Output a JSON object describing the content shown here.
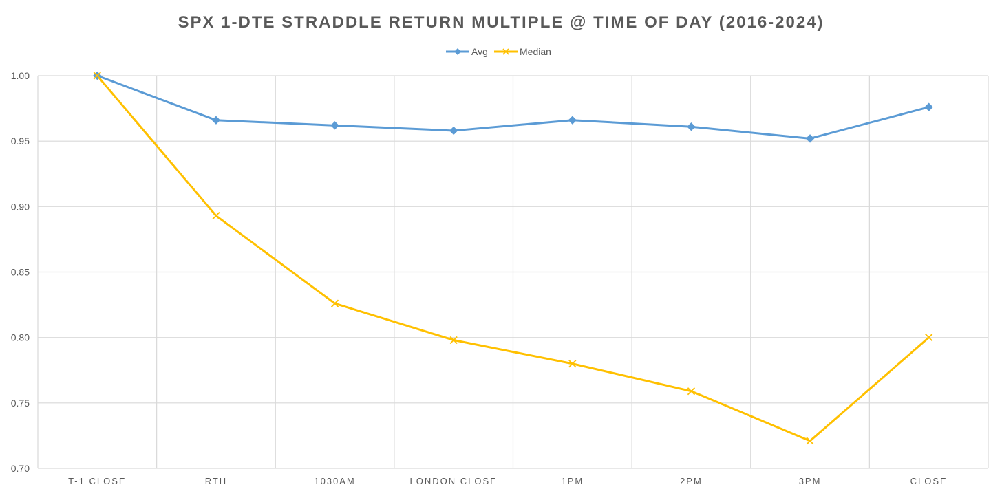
{
  "chart_data": {
    "type": "line",
    "title": "SPX 1-DTE STRADDLE RETURN MULTIPLE @ TIME OF DAY (2016-2024)",
    "xlabel": "",
    "ylabel": "",
    "categories": [
      "T-1 CLOSE",
      "RTH",
      "1030AM",
      "LONDON CLOSE",
      "1PM",
      "2PM",
      "3PM",
      "CLOSE"
    ],
    "ylim": [
      0.7,
      1.0
    ],
    "yticks": [
      "0.70",
      "0.75",
      "0.80",
      "0.85",
      "0.90",
      "0.95",
      "1.00"
    ],
    "yticks_values": [
      0.7,
      0.75,
      0.8,
      0.85,
      0.9,
      0.95,
      1.0
    ],
    "grid": true,
    "legend_position": "top-center",
    "series": [
      {
        "name": "Avg",
        "color": "#5B9BD5",
        "marker": "diamond",
        "values": [
          1.0,
          0.966,
          0.962,
          0.958,
          0.966,
          0.961,
          0.952,
          0.976
        ]
      },
      {
        "name": "Median",
        "color": "#FFC000",
        "marker": "x",
        "values": [
          1.0,
          0.893,
          0.826,
          0.798,
          0.78,
          0.759,
          0.721,
          0.8
        ]
      }
    ]
  }
}
